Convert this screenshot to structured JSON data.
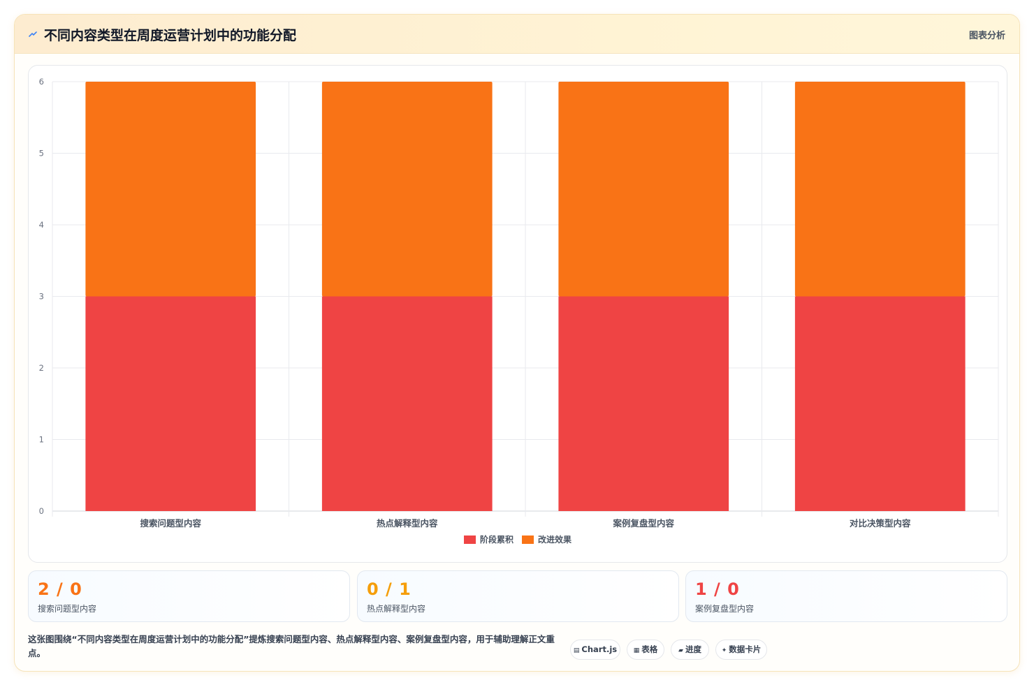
{
  "header": {
    "title": "不同内容类型在周度运营计划中的功能分配",
    "tag": "图表分析",
    "icon": "trend-line-icon"
  },
  "chart_data": {
    "type": "bar",
    "stacked": true,
    "categories": [
      "搜索问题型内容",
      "热点解释型内容",
      "案例复盘型内容",
      "对比决策型内容"
    ],
    "series": [
      {
        "name": "阶段累积",
        "color": "#ef4444",
        "values": [
          3,
          3,
          3,
          3
        ]
      },
      {
        "name": "改进效果",
        "color": "#f97316",
        "values": [
          3,
          3,
          3,
          3
        ]
      }
    ],
    "y_ticks": [
      "0",
      "1",
      "2",
      "3",
      "4",
      "5",
      "6"
    ],
    "ylim": [
      0,
      6
    ],
    "grid": true,
    "legend_position": "bottom",
    "title": "",
    "xlabel": "",
    "ylabel": ""
  },
  "stats": [
    {
      "value": "2 / 0",
      "label": "搜索问题型内容",
      "color": "#f97316"
    },
    {
      "value": "0 / 1",
      "label": "热点解释型内容",
      "color": "#f59e0b"
    },
    {
      "value": "1 / 0",
      "label": "案例复盘型内容",
      "color": "#ef4444"
    }
  ],
  "description": "这张图围绕“不同内容类型在周度运营计划中的功能分配”提炼搜索问题型内容、热点解释型内容、案例复盘型内容，用于辅助理解正文重点。",
  "chips": [
    {
      "glyph": "▤",
      "label": "Chart.js",
      "icon": "chart-icon"
    },
    {
      "glyph": "▦",
      "label": "表格",
      "icon": "table-icon"
    },
    {
      "glyph": "▰",
      "label": "进度",
      "icon": "progress-icon"
    },
    {
      "glyph": "✦",
      "label": "数据卡片",
      "icon": "sparkle-icon"
    }
  ]
}
